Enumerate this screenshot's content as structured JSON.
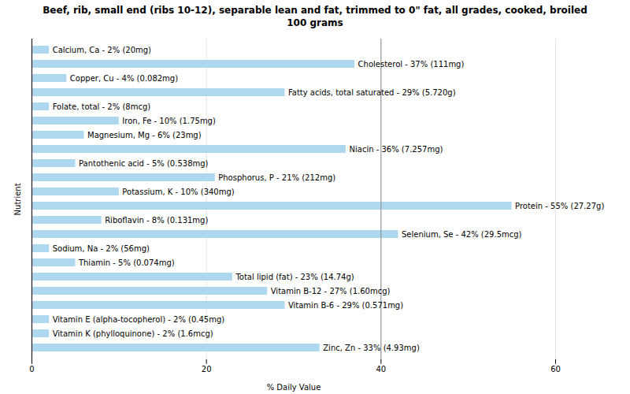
{
  "chart_data": {
    "type": "bar",
    "orientation": "horizontal",
    "title": "Beef, rib, small end (ribs 10-12), separable lean and fat, trimmed to 0\" fat, all grades, cooked, broiled\n100 grams",
    "xlabel": "% Daily Value",
    "ylabel": "Nutrient",
    "categories": [
      "Calcium, Ca - 2% (20mg)",
      "Cholesterol - 37% (111mg)",
      "Copper, Cu - 4% (0.082mg)",
      "Fatty acids, total saturated - 29% (5.720g)",
      "Folate, total - 2% (8mcg)",
      "Iron, Fe - 10% (1.75mg)",
      "Magnesium, Mg - 6% (23mg)",
      "Niacin - 36% (7.257mg)",
      "Pantothenic acid - 5% (0.538mg)",
      "Phosphorus, P - 21% (212mg)",
      "Potassium, K - 10% (340mg)",
      "Protein - 55% (27.27g)",
      "Riboflavin - 8% (0.131mg)",
      "Selenium, Se - 42% (29.5mcg)",
      "Sodium, Na - 2% (56mg)",
      "Thiamin - 5% (0.074mg)",
      "Total lipid (fat) - 23% (14.74g)",
      "Vitamin B-12 - 27% (1.60mcg)",
      "Vitamin B-6 - 29% (0.571mg)",
      "Vitamin E (alpha-tocopherol) - 2% (0.45mg)",
      "Vitamin K (phylloquinone) - 2% (1.6mcg)",
      "Zinc, Zn - 33% (4.93mg)"
    ],
    "values": [
      2,
      37,
      4,
      29,
      2,
      10,
      6,
      36,
      5,
      21,
      10,
      55,
      8,
      42,
      2,
      5,
      23,
      27,
      29,
      2,
      2,
      33
    ],
    "color": "#add8f0",
    "xlim": [
      0,
      60
    ],
    "xticks": [
      0,
      20,
      40,
      60
    ],
    "ref_line_x": 40,
    "grid": true,
    "tick_labels": "x"
  }
}
